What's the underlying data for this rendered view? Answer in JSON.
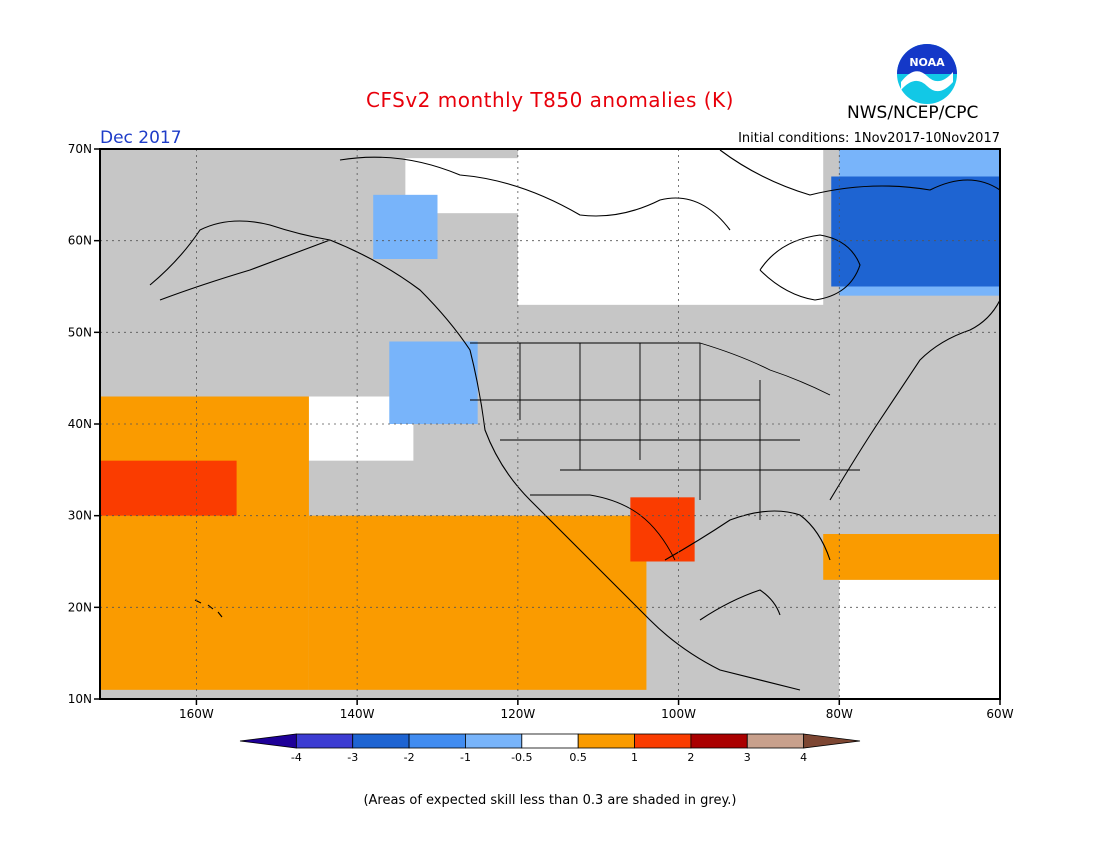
{
  "header": {
    "title": "CFSv2 monthly T850 anomalies (K)",
    "agency": "NWS/NCEP/CPC",
    "logo_text": "NOAA",
    "period": "Dec 2017",
    "initial_conditions": "Initial conditions: 1Nov2017-10Nov2017"
  },
  "map": {
    "projection": "equirectangular",
    "lon_range": [
      -172,
      -60
    ],
    "lat_range": [
      10,
      70
    ],
    "lon_ticks": [
      {
        "value": -160,
        "label": "160W"
      },
      {
        "value": -140,
        "label": "140W"
      },
      {
        "value": -120,
        "label": "120W"
      },
      {
        "value": -100,
        "label": "100W"
      },
      {
        "value": -80,
        "label": "80W"
      },
      {
        "value": -60,
        "label": "60W"
      }
    ],
    "lat_ticks": [
      {
        "value": 10,
        "label": "10N"
      },
      {
        "value": 20,
        "label": "20N"
      },
      {
        "value": 30,
        "label": "30N"
      },
      {
        "value": 40,
        "label": "40N"
      },
      {
        "value": 50,
        "label": "50N"
      },
      {
        "value": 60,
        "label": "60N"
      },
      {
        "value": 70,
        "label": "70N"
      }
    ],
    "gridlines": "dotted",
    "background_grey": "#c6c6c6",
    "skill_note": "(Areas of expected skill less than 0.3 are shaded in grey.)"
  },
  "legend": {
    "colors": [
      "#1e0098",
      "#3c3cd2",
      "#1e64d2",
      "#418cf0",
      "#78b4fa",
      "#ffffff",
      "#fa9b00",
      "#fa3c00",
      "#aa0000",
      "#c8a08c",
      "#7d4632"
    ],
    "labels": [
      "-4",
      "-3",
      "-2",
      "-1",
      "-0.5",
      "0.5",
      "1",
      "2",
      "3",
      "4"
    ]
  },
  "anomaly_regions": [
    {
      "class": "near-zero",
      "color": "#ffffff",
      "lon": [
        -120,
        -82
      ],
      "lat": [
        53,
        70
      ]
    },
    {
      "class": "near-zero",
      "color": "#ffffff",
      "lon": [
        -134,
        -109
      ],
      "lat": [
        63,
        69
      ]
    },
    {
      "class": "near-zero",
      "color": "#ffffff",
      "lon": [
        -172,
        -133
      ],
      "lat": [
        36,
        43
      ]
    },
    {
      "class": "near-zero",
      "color": "#ffffff",
      "lon": [
        -60,
        -80
      ],
      "lat": [
        10,
        23
      ]
    },
    {
      "class": "-0.5 to -1",
      "color": "#78b4fa",
      "lon": [
        -80,
        -60
      ],
      "lat": [
        54,
        70
      ]
    },
    {
      "class": "-0.5 to -1",
      "color": "#78b4fa",
      "lon": [
        -136,
        -125
      ],
      "lat": [
        40,
        49
      ]
    },
    {
      "class": "-0.5 to -1",
      "color": "#78b4fa",
      "lon": [
        -138,
        -130
      ],
      "lat": [
        58,
        65
      ]
    },
    {
      "class": "-2 to -3",
      "color": "#1e64d2",
      "lon": [
        -81,
        -60
      ],
      "lat": [
        55,
        67
      ]
    },
    {
      "class": "0.5 to 1",
      "color": "#fa9b00",
      "lon": [
        -172,
        -146
      ],
      "lat": [
        11,
        43
      ]
    },
    {
      "class": "0.5 to 1",
      "color": "#fa9b00",
      "lon": [
        -146,
        -104
      ],
      "lat": [
        11,
        30
      ]
    },
    {
      "class": "0.5 to 1",
      "color": "#fa9b00",
      "lon": [
        -82,
        -60
      ],
      "lat": [
        23,
        28
      ]
    },
    {
      "class": "1 to 2",
      "color": "#fa3c00",
      "lon": [
        -172,
        -155
      ],
      "lat": [
        30,
        36
      ]
    },
    {
      "class": "1 to 2",
      "color": "#fa3c00",
      "lon": [
        -106,
        -98
      ],
      "lat": [
        25,
        32
      ]
    }
  ]
}
